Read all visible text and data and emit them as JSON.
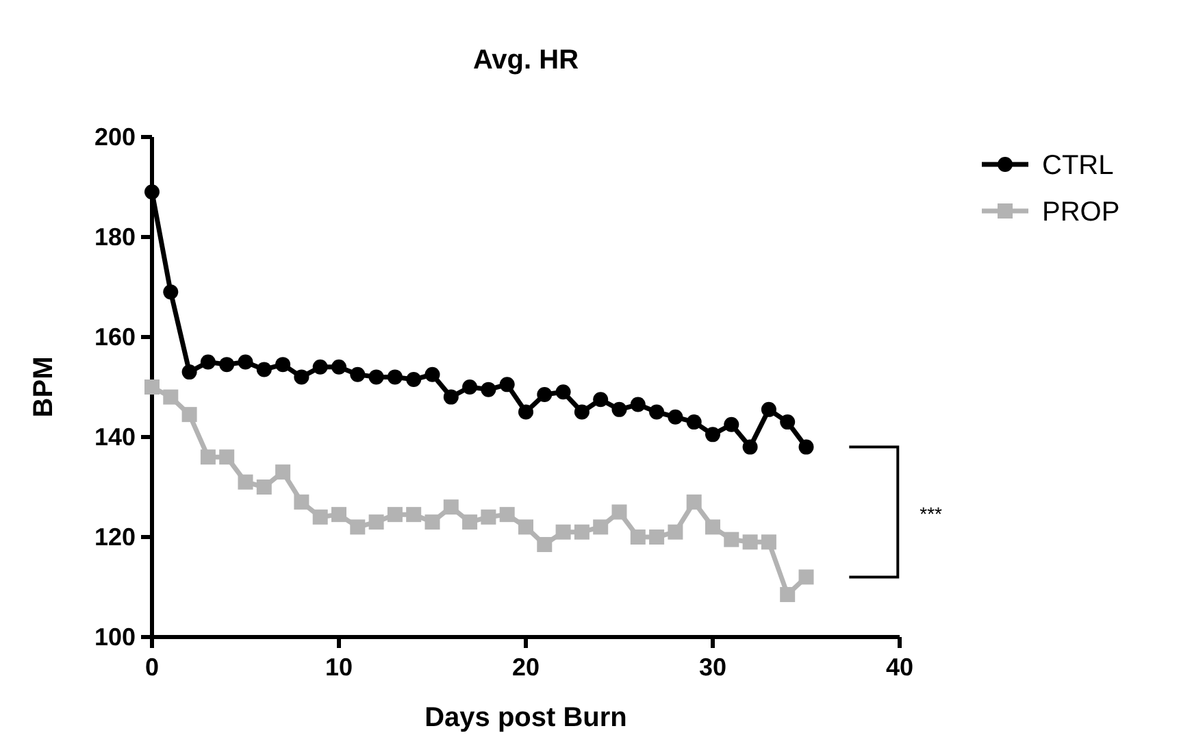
{
  "chart_data": {
    "type": "line",
    "title": "Avg. HR",
    "xlabel": "Days post Burn",
    "ylabel": "BPM",
    "x": [
      0,
      1,
      2,
      3,
      4,
      5,
      6,
      7,
      8,
      9,
      10,
      11,
      12,
      13,
      14,
      15,
      16,
      17,
      18,
      19,
      20,
      21,
      22,
      23,
      24,
      25,
      26,
      27,
      28,
      29,
      30,
      31,
      32,
      33,
      34,
      35
    ],
    "series": [
      {
        "name": "CTRL",
        "color": "#000000",
        "marker": "circle",
        "values": [
          189,
          169,
          153,
          155,
          154.5,
          155,
          153.5,
          154.5,
          152,
          154,
          154,
          152.5,
          152,
          152,
          151.5,
          152.5,
          148,
          150,
          149.5,
          150.5,
          145,
          148.5,
          149,
          145,
          147.5,
          145.5,
          146.5,
          145,
          144,
          143,
          140.5,
          142.5,
          138,
          145.5,
          143,
          138
        ]
      },
      {
        "name": "PROP",
        "color": "#b3b3b3",
        "marker": "square",
        "values": [
          150,
          148,
          144.5,
          136,
          136,
          131,
          130,
          133,
          127,
          124,
          124.5,
          122,
          123,
          124.5,
          124.5,
          123,
          126,
          123,
          124,
          124.5,
          122,
          118.5,
          121,
          121,
          122,
          125,
          120,
          120,
          121,
          127,
          122,
          119.5,
          119,
          119,
          108.5,
          112
        ]
      }
    ],
    "xlim": [
      0,
      40
    ],
    "xticks": [
      0,
      10,
      20,
      30,
      40
    ],
    "ylim": [
      100,
      200
    ],
    "yticks": [
      100,
      120,
      140,
      160,
      180,
      200
    ],
    "grid": false,
    "legend": "top right",
    "line_style": "solid",
    "annotations": [
      "***"
    ]
  }
}
